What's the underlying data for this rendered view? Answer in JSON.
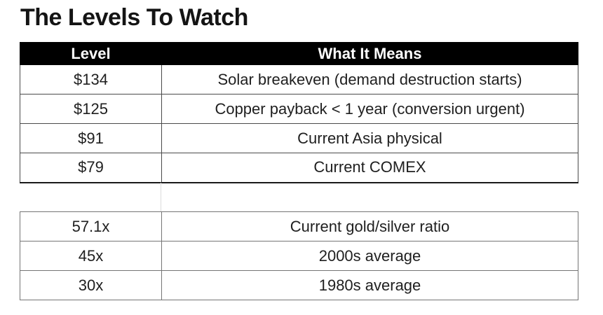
{
  "title": "The Levels To Watch",
  "table1": {
    "headers": [
      "Level",
      "What It Means"
    ],
    "rows": [
      [
        "$134",
        "Solar breakeven (demand destruction starts)"
      ],
      [
        "$125",
        "Copper payback < 1 year (conversion urgent)"
      ],
      [
        "$91",
        "Current Asia physical"
      ],
      [
        "$79",
        "Current COMEX"
      ]
    ]
  },
  "table2": {
    "rows": [
      [
        "57.1x",
        "Current gold/silver ratio"
      ],
      [
        "45x",
        "2000s average"
      ],
      [
        "30x",
        "1980s average"
      ]
    ]
  },
  "chart_data": [
    {
      "type": "table",
      "title": "The Levels To Watch",
      "columns": [
        "Level",
        "What It Means"
      ],
      "rows": [
        [
          "$134",
          "Solar breakeven (demand destruction starts)"
        ],
        [
          "$125",
          "Copper payback < 1 year (conversion urgent)"
        ],
        [
          "$91",
          "Current Asia physical"
        ],
        [
          "$79",
          "Current COMEX"
        ]
      ]
    },
    {
      "type": "table",
      "columns": [
        "Level",
        "What It Means"
      ],
      "rows": [
        [
          "57.1x",
          "Current gold/silver ratio"
        ],
        [
          "45x",
          "2000s average"
        ],
        [
          "30x",
          "1980s average"
        ]
      ]
    }
  ],
  "colors": {
    "background": "#ffffff",
    "header_background": "#000000",
    "header_text": "#ffffff",
    "body_text": "#1f1f1f",
    "table1_border": "#4a4a4a",
    "table2_border": "#757575",
    "gap_line": "#dcdcdc"
  }
}
